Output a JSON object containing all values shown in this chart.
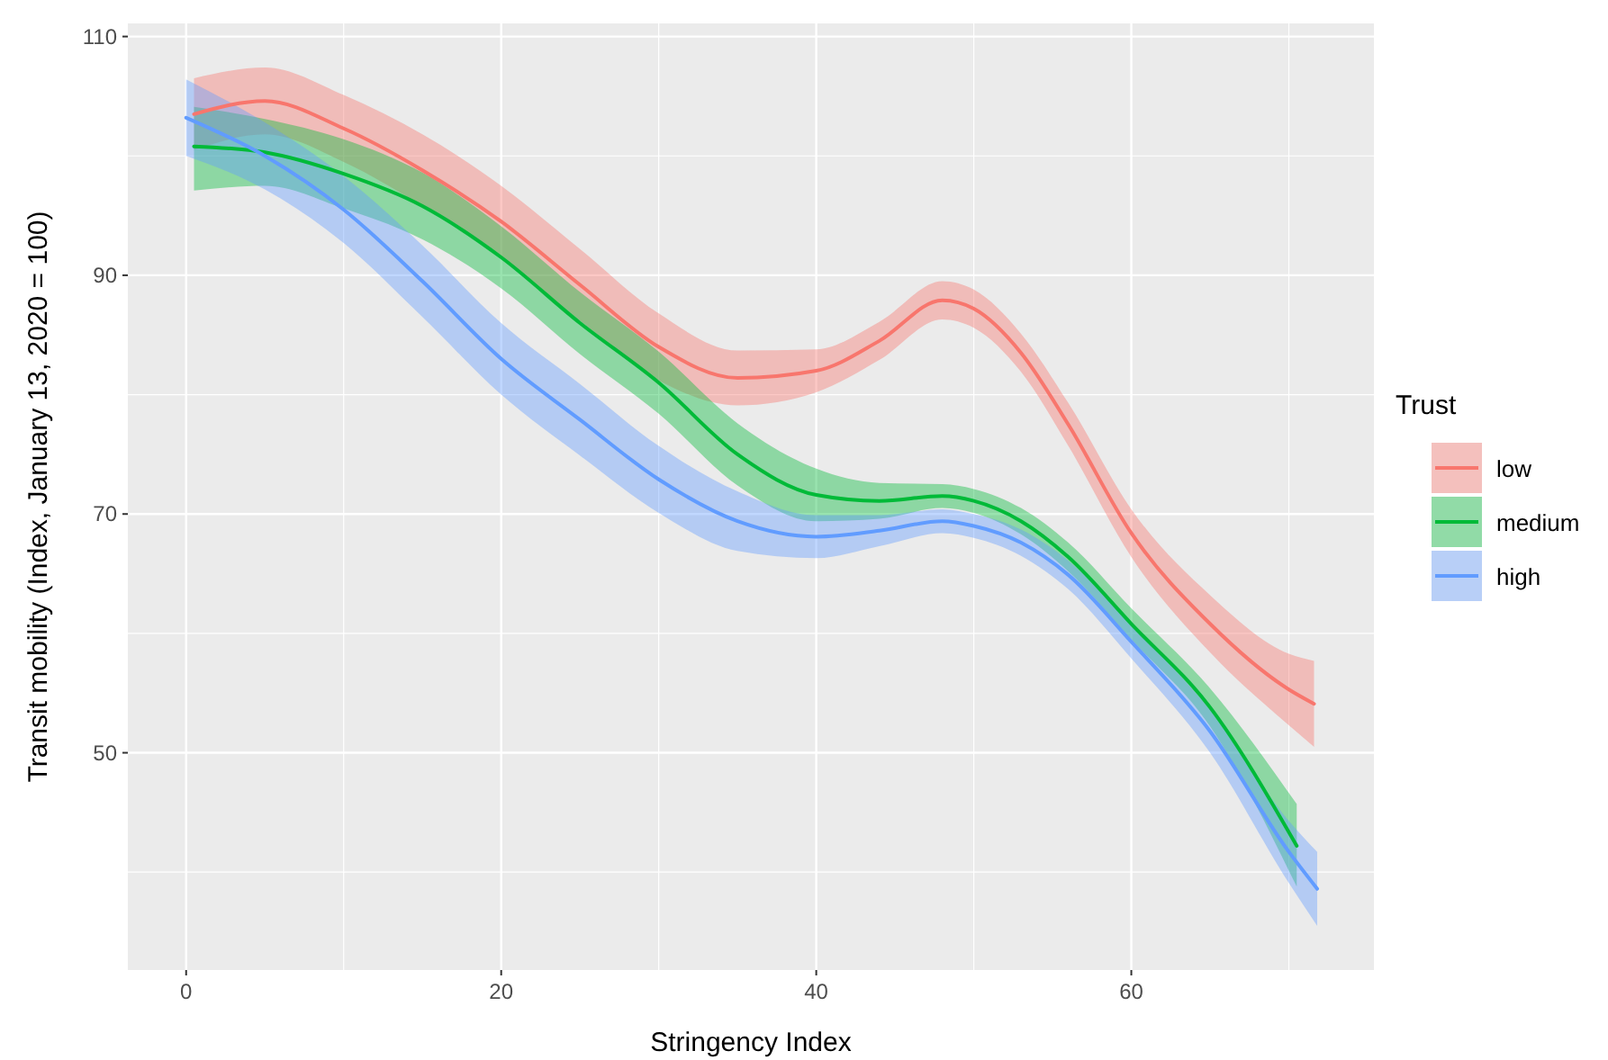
{
  "chart_data": {
    "type": "line",
    "xlabel": "Stringency Index",
    "ylabel": "Transit mobility (Index, January 13, 2020 = 100)",
    "legend_title": "Trust",
    "legend": "right",
    "grid": true,
    "line_style": "solid",
    "xlim": [
      -3.7,
      75.4
    ],
    "ylim": [
      31.8,
      111.1
    ],
    "xticks": [
      0,
      {
        "value": 10,
        "label": null
      },
      20,
      {
        "value": 30,
        "label": null
      },
      40,
      {
        "value": 50,
        "label": null
      },
      60,
      {
        "value": 70,
        "label": null
      }
    ],
    "yticks": [
      {
        "value": 40,
        "label": null
      },
      50,
      {
        "value": 60,
        "label": null
      },
      70,
      {
        "value": 80,
        "label": null
      },
      90,
      {
        "value": 100,
        "label": null
      },
      110
    ],
    "series": [
      {
        "name": "low",
        "color": "#f8766d",
        "x": [
          0.5,
          5,
          10,
          15,
          20,
          25,
          30,
          35,
          40,
          44,
          48,
          50,
          53,
          56,
          60,
          65,
          70,
          71.6
        ],
        "values": [
          103.5,
          104.6,
          102.3,
          98.8,
          94.5,
          89.2,
          84.0,
          81.4,
          82.0,
          84.5,
          87.9,
          87.2,
          83.5,
          77.5,
          68.4,
          60.8,
          55.3,
          54.1
        ],
        "lower": [
          100.5,
          101.8,
          99.5,
          95.8,
          91.5,
          86.2,
          81.2,
          79.1,
          80.2,
          82.9,
          86.3,
          85.6,
          81.9,
          75.7,
          66.4,
          58.4,
          52.3,
          50.5
        ],
        "upper": [
          106.5,
          107.4,
          105.1,
          101.8,
          97.5,
          92.2,
          86.8,
          83.7,
          83.8,
          86.1,
          89.5,
          88.8,
          85.1,
          79.3,
          70.4,
          63.2,
          58.3,
          57.7
        ]
      },
      {
        "name": "medium",
        "color": "#00ba38",
        "x": [
          0.5,
          5,
          10,
          15,
          20,
          25,
          30,
          35,
          40,
          44,
          48,
          50,
          53,
          56,
          60,
          65,
          70.5
        ],
        "values": [
          100.8,
          100.3,
          98.5,
          95.8,
          91.5,
          86.0,
          81.0,
          75.0,
          71.6,
          71.1,
          71.5,
          71.1,
          69.4,
          66.4,
          60.8,
          53.8,
          42.2
        ],
        "lower": [
          97.1,
          97.5,
          95.6,
          93.0,
          88.9,
          83.4,
          78.4,
          72.4,
          69.4,
          69.6,
          70.5,
          70.1,
          68.3,
          65.2,
          59.5,
          52.2,
          38.8
        ],
        "upper": [
          104.1,
          103.1,
          101.4,
          98.6,
          94.1,
          88.6,
          83.6,
          77.6,
          73.8,
          72.6,
          72.5,
          72.1,
          70.5,
          67.6,
          62.1,
          55.4,
          45.7
        ]
      },
      {
        "name": "high",
        "color": "#619cff",
        "x": [
          0,
          5,
          10,
          15,
          20,
          25,
          30,
          35,
          40,
          44,
          48,
          50,
          53,
          56,
          60,
          65,
          70,
          71.8
        ],
        "values": [
          103.2,
          100.0,
          95.5,
          89.5,
          83.0,
          77.9,
          72.9,
          69.4,
          68.1,
          68.6,
          69.4,
          69.0,
          67.6,
          64.9,
          59.3,
          51.8,
          41.7,
          38.6
        ],
        "lower": [
          100.0,
          97.2,
          92.7,
          86.5,
          80.0,
          74.9,
          70.1,
          66.9,
          66.3,
          67.3,
          68.4,
          68.0,
          66.5,
          63.7,
          57.9,
          50.0,
          39.1,
          35.5
        ],
        "upper": [
          106.4,
          102.8,
          98.3,
          92.5,
          86.0,
          80.9,
          75.7,
          71.9,
          69.9,
          69.9,
          70.4,
          70.0,
          68.7,
          66.1,
          60.7,
          53.6,
          44.3,
          41.7
        ]
      }
    ]
  }
}
